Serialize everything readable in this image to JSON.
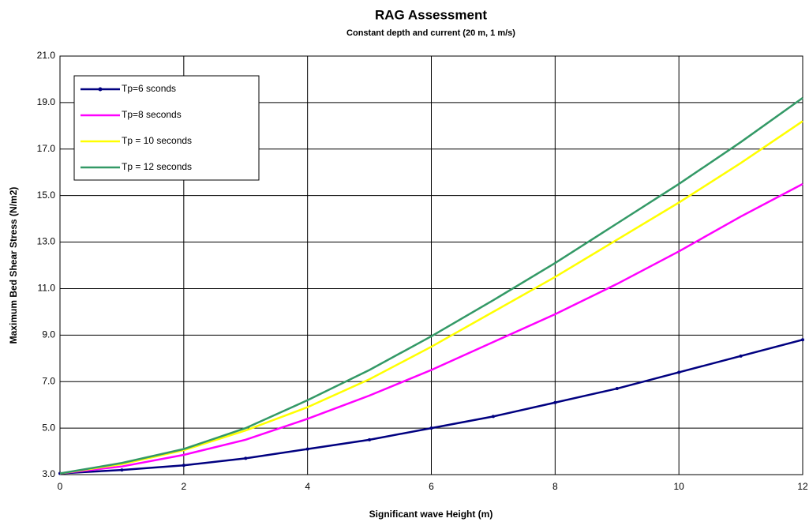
{
  "chart_data": {
    "type": "line",
    "title": "RAG Assessment",
    "subtitle": "Constant depth and current (20 m, 1 m/s)",
    "x_label": "Significant wave Height (m)",
    "y_label": "Maximum Bed Shear Stress (N/m2)",
    "x": [
      0,
      1,
      2,
      3,
      4,
      5,
      6,
      7,
      8,
      9,
      10,
      11,
      12
    ],
    "series": [
      {
        "name": "Tp=6 sconds",
        "color": "#000080",
        "markers": true,
        "values": [
          3.05,
          3.2,
          3.4,
          3.7,
          4.1,
          4.5,
          5.0,
          5.5,
          6.1,
          6.7,
          7.4,
          8.1,
          8.8
        ]
      },
      {
        "name": "Tp=8 seconds",
        "color": "#ff00ff",
        "markers": false,
        "values": [
          3.05,
          3.35,
          3.85,
          4.5,
          5.4,
          6.4,
          7.5,
          8.7,
          9.9,
          11.2,
          12.6,
          14.1,
          15.5
        ]
      },
      {
        "name": "Tp = 10 seconds",
        "color": "#ffff00",
        "markers": false,
        "values": [
          3.05,
          3.45,
          4.05,
          4.9,
          5.9,
          7.1,
          8.5,
          10.0,
          11.5,
          13.1,
          14.7,
          16.4,
          18.2
        ]
      },
      {
        "name": "Tp = 12 seconds",
        "color": "#339966",
        "markers": false,
        "values": [
          3.05,
          3.5,
          4.1,
          5.0,
          6.2,
          7.5,
          8.95,
          10.5,
          12.1,
          13.8,
          15.5,
          17.3,
          19.2
        ]
      }
    ],
    "xlim": [
      0,
      12
    ],
    "xticks": [
      0,
      2,
      4,
      6,
      8,
      10,
      12
    ],
    "ylim": [
      3,
      21
    ],
    "yticks": [
      {
        "value": 3,
        "label": "3.0"
      },
      {
        "value": 5,
        "label": "5.0"
      },
      {
        "value": 7,
        "label": "7.0"
      },
      {
        "value": 9,
        "label": "9.0"
      },
      {
        "value": 11,
        "label": "11.0"
      },
      {
        "value": 13,
        "label": "13.0"
      },
      {
        "value": 15,
        "label": "15.0"
      },
      {
        "value": 17,
        "label": "17.0"
      },
      {
        "value": 19,
        "label": "19.0"
      },
      {
        "value": 21,
        "label": "21.0"
      }
    ],
    "grid": true,
    "legend": "upper left"
  }
}
